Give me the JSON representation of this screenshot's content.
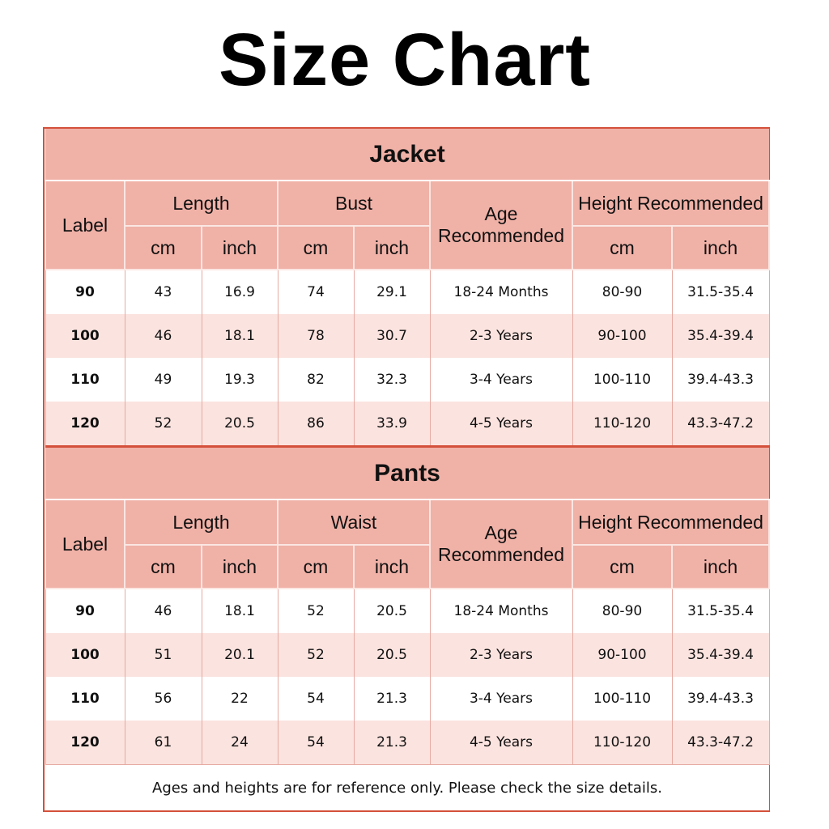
{
  "title": "Size Chart",
  "accent_color": "#d4503a",
  "header_color": "#f0b1a7",
  "stripe_color": "#fbe3df",
  "tables": [
    {
      "name": "Jacket",
      "label_header": "Label",
      "groups": [
        "Length",
        "Bust"
      ],
      "age_header": "Age Recommended",
      "height_header": "Height Recommended",
      "units": [
        "cm",
        "inch",
        "cm",
        "inch",
        "cm",
        "inch"
      ],
      "rows": [
        [
          "90",
          "43",
          "16.9",
          "74",
          "29.1",
          "18-24 Months",
          "80-90",
          "31.5-35.4"
        ],
        [
          "100",
          "46",
          "18.1",
          "78",
          "30.7",
          "2-3 Years",
          "90-100",
          "35.4-39.4"
        ],
        [
          "110",
          "49",
          "19.3",
          "82",
          "32.3",
          "3-4 Years",
          "100-110",
          "39.4-43.3"
        ],
        [
          "120",
          "52",
          "20.5",
          "86",
          "33.9",
          "4-5 Years",
          "110-120",
          "43.3-47.2"
        ]
      ]
    },
    {
      "name": "Pants",
      "label_header": "Label",
      "groups": [
        "Length",
        "Waist"
      ],
      "age_header": "Age Recommended",
      "height_header": "Height Recommended",
      "units": [
        "cm",
        "inch",
        "cm",
        "inch",
        "cm",
        "inch"
      ],
      "rows": [
        [
          "90",
          "46",
          "18.1",
          "52",
          "20.5",
          "18-24 Months",
          "80-90",
          "31.5-35.4"
        ],
        [
          "100",
          "51",
          "20.1",
          "52",
          "20.5",
          "2-3 Years",
          "90-100",
          "35.4-39.4"
        ],
        [
          "110",
          "56",
          "22",
          "54",
          "21.3",
          "3-4 Years",
          "100-110",
          "39.4-43.3"
        ],
        [
          "120",
          "61",
          "24",
          "54",
          "21.3",
          "4-5 Years",
          "110-120",
          "43.3-47.2"
        ]
      ]
    }
  ],
  "footnote": "Ages and heights are for reference only. Please check the size details."
}
